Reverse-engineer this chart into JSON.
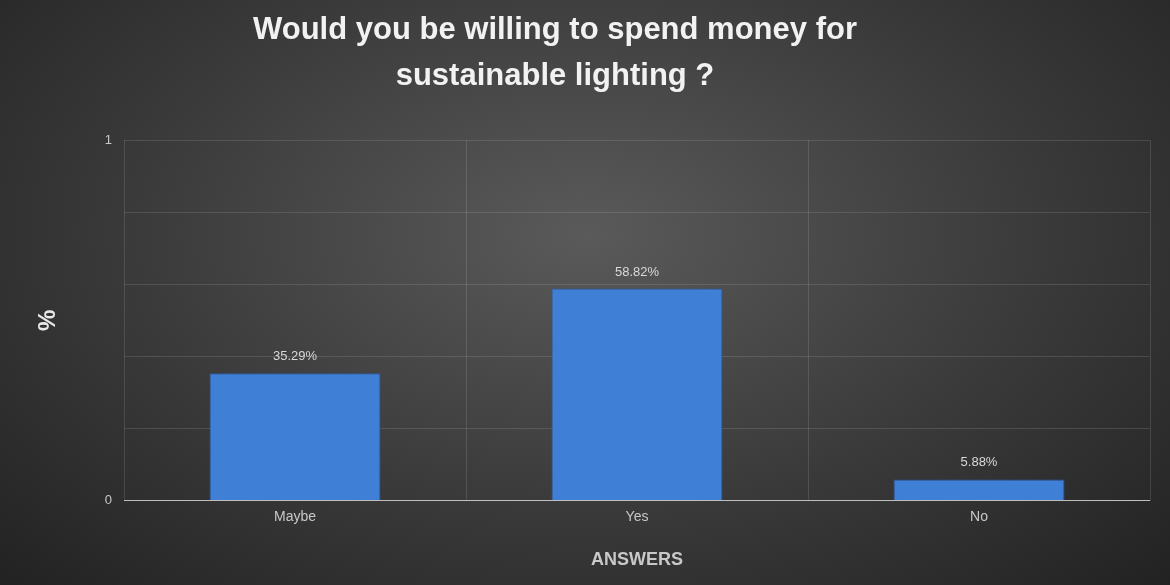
{
  "chart_data": {
    "type": "bar",
    "title": "Would you be willing to spend money for sustainable lighting ?",
    "xlabel": "ANSWERS",
    "ylabel": "%",
    "categories": [
      "Maybe",
      "Yes",
      "No"
    ],
    "values": [
      0.3529,
      0.5882,
      0.0588
    ],
    "value_labels": [
      "35.29%",
      "58.82%",
      "5.88%"
    ],
    "color": "#3f7fd6",
    "ylim": [
      0,
      1
    ],
    "yticks": [
      0,
      {
        "value": 0.2,
        "label": null
      },
      {
        "value": 0.4,
        "label": null
      },
      {
        "value": 0.6,
        "label": null
      },
      {
        "value": 0.8,
        "label": null
      },
      1
    ],
    "grid": true
  }
}
